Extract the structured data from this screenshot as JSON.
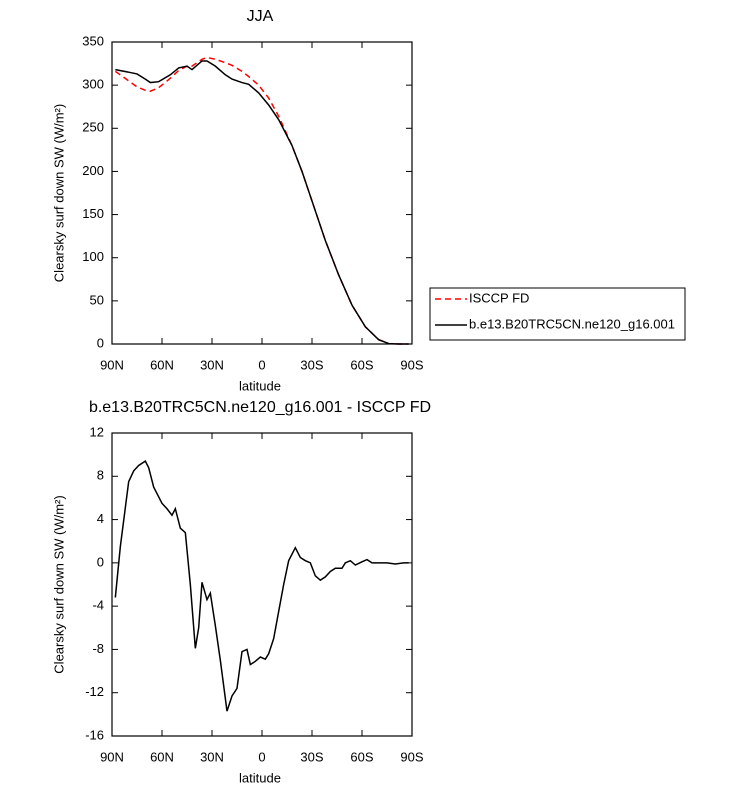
{
  "chart_data": [
    {
      "type": "line",
      "title": "JJA",
      "xlabel": "latitude",
      "ylabel": "Clearsky surf down SW (W/m²)",
      "x": [
        88,
        80,
        75,
        70,
        67,
        62,
        55,
        50,
        45,
        42,
        36,
        33,
        28,
        22,
        18,
        12,
        8,
        2,
        -4,
        -10,
        -18,
        -24,
        -31,
        -38,
        -46,
        -54,
        -62,
        -70,
        -76,
        -82,
        -88
      ],
      "series": [
        {
          "name": "ISCCP FD",
          "color": "#ff0000",
          "style": "dashed",
          "values": [
            316,
            305,
            298,
            294,
            293,
            297,
            308,
            317,
            322,
            322,
            330,
            332,
            330,
            326,
            323,
            316,
            310,
            300,
            285,
            264,
            230,
            200,
            160,
            120,
            80,
            45,
            20,
            5,
            0.5,
            0,
            0
          ]
        },
        {
          "name": "b.e13.B20TRC5CN.ne120_g16.001",
          "color": "#000000",
          "style": "solid",
          "values": [
            318,
            315,
            313,
            307,
            303,
            304,
            312,
            320,
            322,
            318,
            328,
            328,
            322,
            312,
            307,
            303,
            301,
            291,
            277,
            260,
            230,
            200,
            160,
            120,
            80,
            45,
            20,
            5,
            0.5,
            0,
            0
          ]
        }
      ],
      "xlim": [
        90,
        -90
      ],
      "xticks": [
        {
          "value": 90,
          "label": "90N"
        },
        {
          "value": 60,
          "label": "60N"
        },
        {
          "value": 30,
          "label": "30N"
        },
        0,
        {
          "value": -30,
          "label": "30S"
        },
        {
          "value": -60,
          "label": "60S"
        },
        {
          "value": -90,
          "label": "90S"
        }
      ],
      "ylim": [
        0,
        350
      ],
      "yticks": [
        0,
        50,
        100,
        150,
        200,
        250,
        300,
        350
      ],
      "legend": "outside-right"
    },
    {
      "type": "line",
      "title": "b.e13.B20TRC5CN.ne120_g16.001 - ISCCP FD",
      "xlabel": "latitude",
      "ylabel": "Clearsky surf down SW (W/m²)",
      "x": [
        88,
        85,
        80,
        77,
        74,
        70,
        68,
        65,
        60,
        57,
        54,
        52,
        49,
        46,
        43,
        40,
        38,
        36,
        33,
        31,
        28,
        25,
        21,
        18,
        15,
        12,
        9,
        7,
        4,
        1,
        -2,
        -4,
        -7,
        -10,
        -13,
        -16,
        -20,
        -23,
        -26,
        -29,
        -32,
        -35,
        -38,
        -41,
        -44,
        -48,
        -50,
        -53,
        -56,
        -60,
        -63,
        -66,
        -70,
        -75,
        -80,
        -85,
        -88
      ],
      "values": [
        -3.2,
        1.5,
        7.5,
        8.5,
        9,
        9.4,
        8.8,
        7,
        5.5,
        5,
        4.4,
        5,
        3.2,
        2.8,
        -2,
        -7.9,
        -6,
        -1.8,
        -3.4,
        -2.8,
        -5.8,
        -9,
        -13.7,
        -12.3,
        -11.6,
        -8.2,
        -8,
        -9.4,
        -9.1,
        -8.7,
        -8.9,
        -8.4,
        -7,
        -4.5,
        -2,
        0.2,
        1.4,
        0.5,
        0.2,
        0,
        -1.2,
        -1.6,
        -1.3,
        -0.8,
        -0.5,
        -0.5,
        0,
        0.2,
        -0.2,
        0.1,
        0.3,
        0,
        0,
        0,
        -0.1,
        0,
        0
      ],
      "color": "#000000",
      "xlim": [
        90,
        -90
      ],
      "xticks": [
        {
          "value": 90,
          "label": "90N"
        },
        {
          "value": 60,
          "label": "60N"
        },
        {
          "value": 30,
          "label": "30N"
        },
        0,
        {
          "value": -30,
          "label": "30S"
        },
        {
          "value": -60,
          "label": "60S"
        },
        {
          "value": -90,
          "label": "90S"
        }
      ],
      "ylim": [
        -16,
        12
      ],
      "yticks": [
        12,
        8,
        4,
        0,
        -4,
        -8,
        -12,
        -16
      ]
    }
  ]
}
